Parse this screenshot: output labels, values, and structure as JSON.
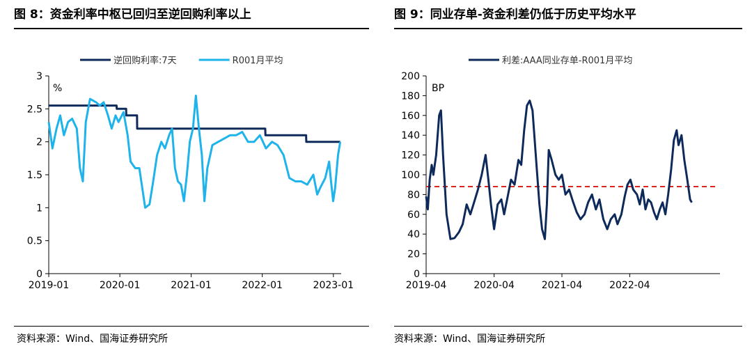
{
  "left": {
    "title": "图 8：资金利率中枢已回归至逆回购利率以上",
    "source": "资料来源：Wind、国海证券研究所"
  },
  "right": {
    "title": "图 9：同业存单-资金利差仍低于历史平均水平",
    "source": "资料来源：Wind、国海证券研究所"
  },
  "colors": {
    "dark_blue": "#0e2a5a",
    "light_blue": "#1eb3ea",
    "red_dash": "#e0231c"
  },
  "chart_data": [
    {
      "type": "line",
      "title": "",
      "unit_label": "%",
      "xlabel": "",
      "ylabel": "",
      "ylim": [
        0,
        3
      ],
      "yticks": [
        0,
        0.5,
        1,
        1.5,
        2,
        2.5,
        3
      ],
      "ytick_labels": [
        "0",
        "0.5",
        "1",
        "1.5",
        "2",
        "2.5",
        "3"
      ],
      "xlim": [
        "2019-01-01",
        "2023-02-10"
      ],
      "xticks": [
        "2019-01-01",
        "2020-01-01",
        "2021-01-01",
        "2022-01-01",
        "2023-01-01"
      ],
      "xtick_labels": [
        "2019-01",
        "2020-01",
        "2021-01",
        "2022-01",
        "2023-01"
      ],
      "legend": "top",
      "series": [
        {
          "name": "逆回购利率:7天",
          "color": "#0e2a5a",
          "step": true,
          "points": [
            [
              "2019-01-01",
              2.55
            ],
            [
              "2019-12-15",
              2.55
            ],
            [
              "2019-12-16",
              2.5
            ],
            [
              "2020-02-02",
              2.5
            ],
            [
              "2020-02-03",
              2.4
            ],
            [
              "2020-03-29",
              2.4
            ],
            [
              "2020-03-30",
              2.2
            ],
            [
              "2022-01-16",
              2.2
            ],
            [
              "2022-01-17",
              2.1
            ],
            [
              "2022-08-14",
              2.1
            ],
            [
              "2022-08-15",
              2.0
            ],
            [
              "2023-02-05",
              2.0
            ]
          ]
        },
        {
          "name": "R001月平均",
          "color": "#1eb3ea",
          "step": false,
          "points": [
            [
              "2019-01-01",
              2.3
            ],
            [
              "2019-01-20",
              1.9
            ],
            [
              "2019-02-10",
              2.2
            ],
            [
              "2019-03-01",
              2.4
            ],
            [
              "2019-03-20",
              2.1
            ],
            [
              "2019-04-10",
              2.3
            ],
            [
              "2019-05-01",
              2.35
            ],
            [
              "2019-05-25",
              2.2
            ],
            [
              "2019-06-10",
              1.6
            ],
            [
              "2019-06-25",
              1.4
            ],
            [
              "2019-07-10",
              2.3
            ],
            [
              "2019-08-01",
              2.65
            ],
            [
              "2019-09-01",
              2.6
            ],
            [
              "2019-09-20",
              2.55
            ],
            [
              "2019-10-10",
              2.6
            ],
            [
              "2019-11-01",
              2.4
            ],
            [
              "2019-11-20",
              2.2
            ],
            [
              "2019-12-10",
              2.4
            ],
            [
              "2019-12-25",
              2.3
            ],
            [
              "2020-01-20",
              2.45
            ],
            [
              "2020-02-10",
              2.1
            ],
            [
              "2020-02-25",
              1.7
            ],
            [
              "2020-03-20",
              1.6
            ],
            [
              "2020-04-10",
              1.6
            ],
            [
              "2020-04-25",
              1.3
            ],
            [
              "2020-05-10",
              1.0
            ],
            [
              "2020-06-01",
              1.05
            ],
            [
              "2020-06-20",
              1.4
            ],
            [
              "2020-07-10",
              1.8
            ],
            [
              "2020-08-01",
              2.0
            ],
            [
              "2020-08-20",
              1.9
            ],
            [
              "2020-09-10",
              2.1
            ],
            [
              "2020-09-25",
              2.2
            ],
            [
              "2020-10-10",
              1.6
            ],
            [
              "2020-10-25",
              1.4
            ],
            [
              "2020-11-10",
              1.35
            ],
            [
              "2020-11-25",
              1.1
            ],
            [
              "2020-12-10",
              1.5
            ],
            [
              "2020-12-25",
              2.0
            ],
            [
              "2021-01-10",
              2.2
            ],
            [
              "2021-01-25",
              2.7
            ],
            [
              "2021-02-10",
              2.2
            ],
            [
              "2021-02-25",
              1.8
            ],
            [
              "2021-03-10",
              1.1
            ],
            [
              "2021-03-25",
              1.6
            ],
            [
              "2021-04-20",
              1.95
            ],
            [
              "2021-05-20",
              2.0
            ],
            [
              "2021-06-20",
              2.05
            ],
            [
              "2021-07-20",
              2.1
            ],
            [
              "2021-08-20",
              2.1
            ],
            [
              "2021-09-20",
              2.15
            ],
            [
              "2021-10-20",
              2.0
            ],
            [
              "2021-11-20",
              2.0
            ],
            [
              "2021-12-20",
              2.1
            ],
            [
              "2022-01-20",
              1.9
            ],
            [
              "2022-02-20",
              2.0
            ],
            [
              "2022-03-20",
              1.95
            ],
            [
              "2022-04-20",
              1.8
            ],
            [
              "2022-05-20",
              1.45
            ],
            [
              "2022-06-20",
              1.4
            ],
            [
              "2022-07-20",
              1.4
            ],
            [
              "2022-08-20",
              1.35
            ],
            [
              "2022-09-20",
              1.5
            ],
            [
              "2022-10-10",
              1.2
            ],
            [
              "2022-10-25",
              1.3
            ],
            [
              "2022-11-20",
              1.45
            ],
            [
              "2022-12-10",
              1.7
            ],
            [
              "2022-12-20",
              1.4
            ],
            [
              "2022-12-31",
              1.1
            ],
            [
              "2023-01-10",
              1.3
            ],
            [
              "2023-01-25",
              1.8
            ],
            [
              "2023-02-05",
              2.0
            ]
          ]
        }
      ]
    },
    {
      "type": "line",
      "title": "",
      "unit_label": "BP",
      "xlabel": "",
      "ylabel": "",
      "ylim": [
        0,
        200
      ],
      "yticks": [
        0,
        20,
        40,
        60,
        80,
        100,
        120,
        140,
        160,
        180,
        200
      ],
      "ytick_labels": [
        "0",
        "20",
        "40",
        "60",
        "80",
        "100",
        "120",
        "140",
        "160",
        "180",
        "200"
      ],
      "xlim": [
        "2019-04-01",
        "2023-07-31"
      ],
      "xticks": [
        "2019-04-01",
        "2020-04-01",
        "2021-04-01",
        "2022-04-01"
      ],
      "xtick_labels": [
        "2019-04",
        "2020-04",
        "2021-04",
        "2022-04"
      ],
      "legend": "top",
      "reference_line": {
        "value": 88,
        "style": "dashed",
        "color": "#e0231c"
      },
      "series": [
        {
          "name": "利差:AAA同业存单-R001月平均",
          "color": "#0e2a5a",
          "step": false,
          "points": [
            [
              "2019-04-01",
              78
            ],
            [
              "2019-04-10",
              65
            ],
            [
              "2019-04-20",
              95
            ],
            [
              "2019-05-01",
              110
            ],
            [
              "2019-05-10",
              100
            ],
            [
              "2019-05-25",
              120
            ],
            [
              "2019-06-10",
              160
            ],
            [
              "2019-06-20",
              165
            ],
            [
              "2019-07-01",
              120
            ],
            [
              "2019-07-20",
              60
            ],
            [
              "2019-08-10",
              35
            ],
            [
              "2019-09-01",
              36
            ],
            [
              "2019-09-25",
              42
            ],
            [
              "2019-10-15",
              50
            ],
            [
              "2019-11-05",
              70
            ],
            [
              "2019-11-25",
              60
            ],
            [
              "2019-12-15",
              72
            ],
            [
              "2020-01-05",
              85
            ],
            [
              "2020-01-25",
              100
            ],
            [
              "2020-02-15",
              120
            ],
            [
              "2020-03-01",
              95
            ],
            [
              "2020-03-15",
              70
            ],
            [
              "2020-04-01",
              45
            ],
            [
              "2020-04-20",
              70
            ],
            [
              "2020-05-10",
              75
            ],
            [
              "2020-05-25",
              60
            ],
            [
              "2020-06-10",
              75
            ],
            [
              "2020-07-01",
              95
            ],
            [
              "2020-07-20",
              90
            ],
            [
              "2020-08-10",
              115
            ],
            [
              "2020-08-25",
              110
            ],
            [
              "2020-09-10",
              145
            ],
            [
              "2020-09-25",
              170
            ],
            [
              "2020-10-10",
              175
            ],
            [
              "2020-10-25",
              165
            ],
            [
              "2020-11-15",
              110
            ],
            [
              "2020-12-01",
              70
            ],
            [
              "2020-12-15",
              45
            ],
            [
              "2020-12-30",
              35
            ],
            [
              "2021-01-10",
              70
            ],
            [
              "2021-01-20",
              125
            ],
            [
              "2021-02-05",
              115
            ],
            [
              "2021-02-25",
              100
            ],
            [
              "2021-03-15",
              95
            ],
            [
              "2021-04-01",
              100
            ],
            [
              "2021-04-20",
              80
            ],
            [
              "2021-05-10",
              85
            ],
            [
              "2021-06-01",
              72
            ],
            [
              "2021-06-20",
              62
            ],
            [
              "2021-07-10",
              55
            ],
            [
              "2021-08-01",
              60
            ],
            [
              "2021-08-20",
              72
            ],
            [
              "2021-09-10",
              80
            ],
            [
              "2021-10-01",
              65
            ],
            [
              "2021-10-20",
              75
            ],
            [
              "2021-11-10",
              55
            ],
            [
              "2021-12-01",
              45
            ],
            [
              "2021-12-20",
              55
            ],
            [
              "2022-01-10",
              60
            ],
            [
              "2022-01-25",
              50
            ],
            [
              "2022-02-15",
              60
            ],
            [
              "2022-03-05",
              78
            ],
            [
              "2022-03-20",
              90
            ],
            [
              "2022-04-05",
              95
            ],
            [
              "2022-04-20",
              85
            ],
            [
              "2022-05-10",
              80
            ],
            [
              "2022-05-25",
              70
            ],
            [
              "2022-06-10",
              85
            ],
            [
              "2022-06-25",
              65
            ],
            [
              "2022-07-10",
              75
            ],
            [
              "2022-07-25",
              72
            ],
            [
              "2022-08-10",
              62
            ],
            [
              "2022-08-25",
              55
            ],
            [
              "2022-09-10",
              65
            ],
            [
              "2022-09-25",
              72
            ],
            [
              "2022-10-10",
              60
            ],
            [
              "2022-10-25",
              80
            ],
            [
              "2022-11-10",
              105
            ],
            [
              "2022-11-25",
              135
            ],
            [
              "2022-12-10",
              145
            ],
            [
              "2022-12-20",
              130
            ],
            [
              "2023-01-05",
              140
            ],
            [
              "2023-01-20",
              115
            ],
            [
              "2023-02-05",
              95
            ],
            [
              "2023-02-20",
              75
            ],
            [
              "2023-03-01",
              72
            ]
          ]
        }
      ]
    }
  ]
}
